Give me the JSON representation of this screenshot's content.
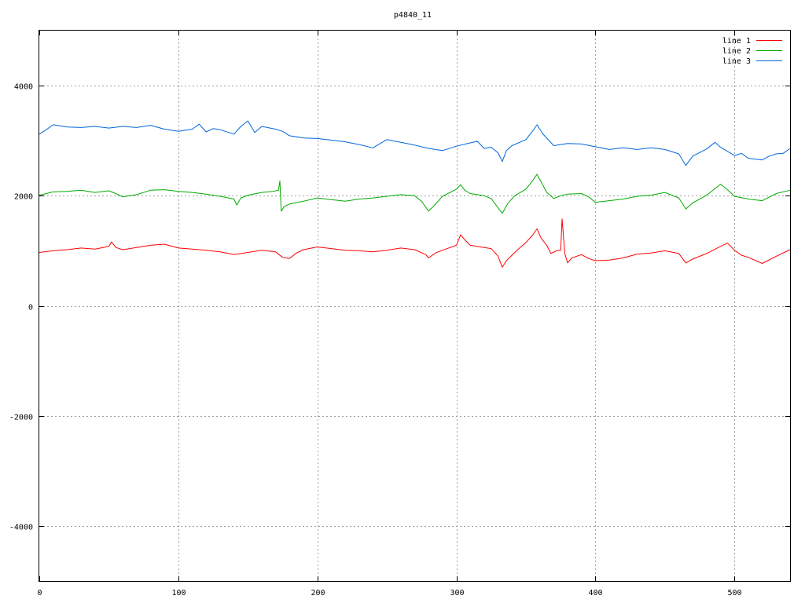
{
  "chart_data": {
    "type": "line",
    "title": "p4840_11",
    "xlabel": "",
    "ylabel": "",
    "xlim": [
      0,
      540
    ],
    "ylim": [
      -5000,
      5000
    ],
    "x_ticks": [
      0,
      100,
      200,
      300,
      400,
      500
    ],
    "y_ticks": [
      -4000,
      -2000,
      0,
      2000,
      4000
    ],
    "x_tick_labels": [
      "0",
      "100",
      "200",
      "300",
      "400",
      "500"
    ],
    "y_tick_labels": [
      "-4000",
      "-2000",
      "0",
      "2000",
      "4000"
    ],
    "grid": true,
    "legend_position": "top-right",
    "series": [
      {
        "name": "line 1",
        "color": "#ff0000",
        "points": [
          [
            0,
            970
          ],
          [
            10,
            1000
          ],
          [
            20,
            1020
          ],
          [
            30,
            1050
          ],
          [
            40,
            1030
          ],
          [
            50,
            1080
          ],
          [
            52,
            1160
          ],
          [
            55,
            1060
          ],
          [
            60,
            1020
          ],
          [
            70,
            1060
          ],
          [
            80,
            1100
          ],
          [
            90,
            1120
          ],
          [
            100,
            1050
          ],
          [
            110,
            1030
          ],
          [
            120,
            1010
          ],
          [
            130,
            980
          ],
          [
            140,
            930
          ],
          [
            150,
            970
          ],
          [
            160,
            1010
          ],
          [
            170,
            980
          ],
          [
            175,
            880
          ],
          [
            180,
            860
          ],
          [
            185,
            960
          ],
          [
            190,
            1020
          ],
          [
            200,
            1070
          ],
          [
            210,
            1040
          ],
          [
            220,
            1010
          ],
          [
            230,
            1000
          ],
          [
            240,
            980
          ],
          [
            250,
            1010
          ],
          [
            260,
            1050
          ],
          [
            270,
            1020
          ],
          [
            278,
            930
          ],
          [
            280,
            870
          ],
          [
            285,
            960
          ],
          [
            290,
            1010
          ],
          [
            300,
            1100
          ],
          [
            303,
            1290
          ],
          [
            306,
            1200
          ],
          [
            310,
            1100
          ],
          [
            320,
            1060
          ],
          [
            325,
            1040
          ],
          [
            330,
            900
          ],
          [
            333,
            700
          ],
          [
            336,
            820
          ],
          [
            340,
            920
          ],
          [
            345,
            1040
          ],
          [
            350,
            1150
          ],
          [
            355,
            1290
          ],
          [
            358,
            1400
          ],
          [
            361,
            1230
          ],
          [
            365,
            1100
          ],
          [
            368,
            950
          ],
          [
            372,
            1000
          ],
          [
            375,
            1010
          ],
          [
            376,
            1580
          ],
          [
            378,
            950
          ],
          [
            380,
            780
          ],
          [
            383,
            870
          ],
          [
            390,
            930
          ],
          [
            395,
            860
          ],
          [
            400,
            820
          ],
          [
            410,
            830
          ],
          [
            420,
            870
          ],
          [
            430,
            940
          ],
          [
            440,
            960
          ],
          [
            450,
            1000
          ],
          [
            460,
            950
          ],
          [
            465,
            780
          ],
          [
            470,
            850
          ],
          [
            480,
            950
          ],
          [
            490,
            1080
          ],
          [
            495,
            1140
          ],
          [
            500,
            1010
          ],
          [
            505,
            920
          ],
          [
            510,
            880
          ],
          [
            520,
            770
          ],
          [
            530,
            900
          ],
          [
            540,
            1020
          ]
        ]
      },
      {
        "name": "line 2",
        "color": "#00aa00",
        "points": [
          [
            0,
            2010
          ],
          [
            10,
            2070
          ],
          [
            20,
            2080
          ],
          [
            30,
            2100
          ],
          [
            40,
            2060
          ],
          [
            50,
            2090
          ],
          [
            55,
            2040
          ],
          [
            60,
            1980
          ],
          [
            70,
            2020
          ],
          [
            80,
            2100
          ],
          [
            90,
            2110
          ],
          [
            100,
            2080
          ],
          [
            110,
            2060
          ],
          [
            120,
            2030
          ],
          [
            130,
            1990
          ],
          [
            140,
            1940
          ],
          [
            142,
            1830
          ],
          [
            145,
            1960
          ],
          [
            150,
            2010
          ],
          [
            160,
            2060
          ],
          [
            168,
            2080
          ],
          [
            172,
            2100
          ],
          [
            173,
            2270
          ],
          [
            174,
            1720
          ],
          [
            176,
            1800
          ],
          [
            180,
            1850
          ],
          [
            190,
            1900
          ],
          [
            200,
            1960
          ],
          [
            210,
            1930
          ],
          [
            220,
            1900
          ],
          [
            230,
            1940
          ],
          [
            240,
            1960
          ],
          [
            250,
            1990
          ],
          [
            260,
            2020
          ],
          [
            270,
            2000
          ],
          [
            275,
            1900
          ],
          [
            280,
            1720
          ],
          [
            284,
            1820
          ],
          [
            290,
            1990
          ],
          [
            300,
            2120
          ],
          [
            303,
            2200
          ],
          [
            306,
            2100
          ],
          [
            310,
            2040
          ],
          [
            320,
            2000
          ],
          [
            325,
            1950
          ],
          [
            330,
            1780
          ],
          [
            333,
            1680
          ],
          [
            337,
            1860
          ],
          [
            342,
            2000
          ],
          [
            350,
            2120
          ],
          [
            355,
            2280
          ],
          [
            358,
            2390
          ],
          [
            361,
            2250
          ],
          [
            365,
            2060
          ],
          [
            370,
            1950
          ],
          [
            375,
            2000
          ],
          [
            380,
            2030
          ],
          [
            390,
            2040
          ],
          [
            395,
            1980
          ],
          [
            400,
            1880
          ],
          [
            410,
            1910
          ],
          [
            420,
            1940
          ],
          [
            430,
            1990
          ],
          [
            440,
            2010
          ],
          [
            450,
            2060
          ],
          [
            460,
            1960
          ],
          [
            465,
            1760
          ],
          [
            470,
            1870
          ],
          [
            480,
            2010
          ],
          [
            490,
            2210
          ],
          [
            495,
            2110
          ],
          [
            500,
            1990
          ],
          [
            510,
            1940
          ],
          [
            520,
            1910
          ],
          [
            530,
            2040
          ],
          [
            540,
            2100
          ]
        ]
      },
      {
        "name": "line 3",
        "color": "#0066dd",
        "points": [
          [
            0,
            3120
          ],
          [
            5,
            3200
          ],
          [
            10,
            3290
          ],
          [
            20,
            3250
          ],
          [
            30,
            3240
          ],
          [
            40,
            3260
          ],
          [
            50,
            3230
          ],
          [
            60,
            3260
          ],
          [
            70,
            3240
          ],
          [
            80,
            3280
          ],
          [
            90,
            3210
          ],
          [
            100,
            3170
          ],
          [
            110,
            3210
          ],
          [
            115,
            3300
          ],
          [
            120,
            3160
          ],
          [
            125,
            3220
          ],
          [
            130,
            3200
          ],
          [
            140,
            3120
          ],
          [
            145,
            3260
          ],
          [
            150,
            3360
          ],
          [
            155,
            3150
          ],
          [
            160,
            3260
          ],
          [
            170,
            3210
          ],
          [
            175,
            3170
          ],
          [
            180,
            3090
          ],
          [
            190,
            3050
          ],
          [
            200,
            3040
          ],
          [
            210,
            3010
          ],
          [
            220,
            2980
          ],
          [
            230,
            2930
          ],
          [
            240,
            2870
          ],
          [
            250,
            3020
          ],
          [
            260,
            2970
          ],
          [
            270,
            2920
          ],
          [
            280,
            2860
          ],
          [
            290,
            2820
          ],
          [
            300,
            2900
          ],
          [
            310,
            2960
          ],
          [
            315,
            2990
          ],
          [
            320,
            2860
          ],
          [
            325,
            2880
          ],
          [
            330,
            2780
          ],
          [
            333,
            2620
          ],
          [
            336,
            2820
          ],
          [
            340,
            2910
          ],
          [
            350,
            3020
          ],
          [
            355,
            3180
          ],
          [
            358,
            3290
          ],
          [
            362,
            3130
          ],
          [
            370,
            2910
          ],
          [
            380,
            2950
          ],
          [
            390,
            2940
          ],
          [
            400,
            2890
          ],
          [
            410,
            2840
          ],
          [
            420,
            2870
          ],
          [
            430,
            2840
          ],
          [
            440,
            2870
          ],
          [
            450,
            2840
          ],
          [
            460,
            2760
          ],
          [
            465,
            2550
          ],
          [
            470,
            2720
          ],
          [
            480,
            2850
          ],
          [
            486,
            2970
          ],
          [
            490,
            2880
          ],
          [
            500,
            2730
          ],
          [
            505,
            2770
          ],
          [
            510,
            2680
          ],
          [
            520,
            2650
          ],
          [
            525,
            2720
          ],
          [
            530,
            2760
          ],
          [
            535,
            2770
          ],
          [
            540,
            2860
          ]
        ]
      }
    ]
  }
}
